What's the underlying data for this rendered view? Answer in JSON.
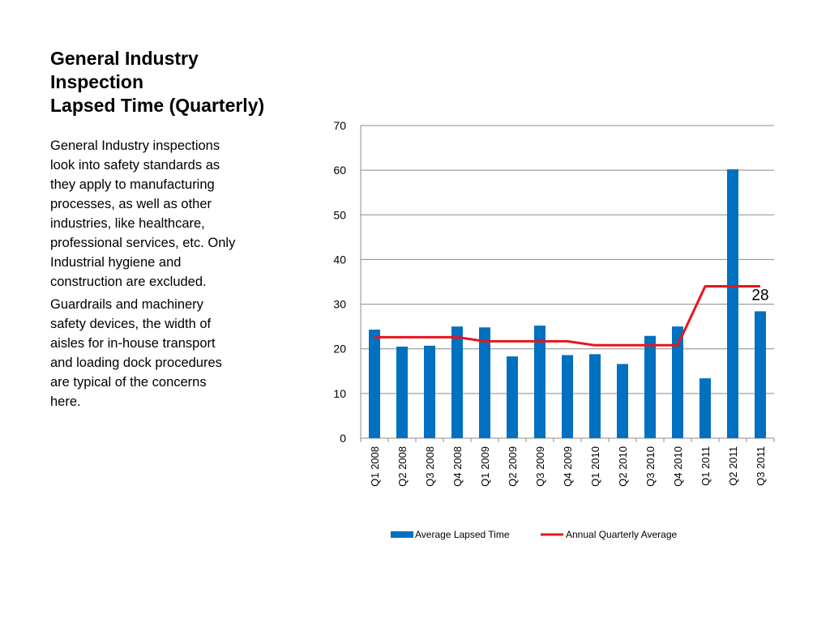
{
  "slide": {
    "title_lines": [
      "General Industry",
      "Inspection",
      "Lapsed Time (Quarterly)"
    ],
    "paragraphs": [
      "General Industry inspections look into safety standards as they apply to manufacturing processes, as well as other industries, like healthcare, professional services, etc. Only Industrial hygiene and construction are excluded.",
      "Guardrails and machinery safety devices, the width of aisles for in-house transport and loading dock procedures are typical of the concerns here."
    ]
  },
  "chart_data": {
    "type": "bar",
    "title": "",
    "xlabel": "",
    "ylabel": "",
    "ylim": [
      0,
      70
    ],
    "yticks": [
      0,
      10,
      20,
      30,
      40,
      50,
      60,
      70
    ],
    "grid": true,
    "legend_position": "bottom",
    "categories": [
      "Q1 2008",
      "Q2 2008",
      "Q3 2008",
      "Q4 2008",
      "Q1 2009",
      "Q2 2009",
      "Q3 2009",
      "Q4 2009",
      "Q1 2010",
      "Q2 2010",
      "Q3 2010",
      "Q4 2010",
      "Q1 2011",
      "Q2 2011",
      "Q3 2011"
    ],
    "series": [
      {
        "name": "Average Lapsed Time",
        "type": "bar",
        "color": "#0070C0",
        "values": [
          24.3,
          20.5,
          20.7,
          25.0,
          24.8,
          18.3,
          25.2,
          18.6,
          18.8,
          16.6,
          22.9,
          25.0,
          13.4,
          60.2,
          28.4
        ]
      },
      {
        "name": "Annual Quarterly Average",
        "type": "line",
        "color": "#E8161B",
        "values": [
          22.6,
          22.6,
          22.6,
          22.6,
          21.7,
          21.7,
          21.7,
          21.7,
          20.8,
          20.8,
          20.8,
          20.8,
          34.0,
          34.0,
          34.0
        ]
      }
    ],
    "annotations": [
      {
        "text": "28",
        "category": "Q3 2011"
      }
    ]
  }
}
